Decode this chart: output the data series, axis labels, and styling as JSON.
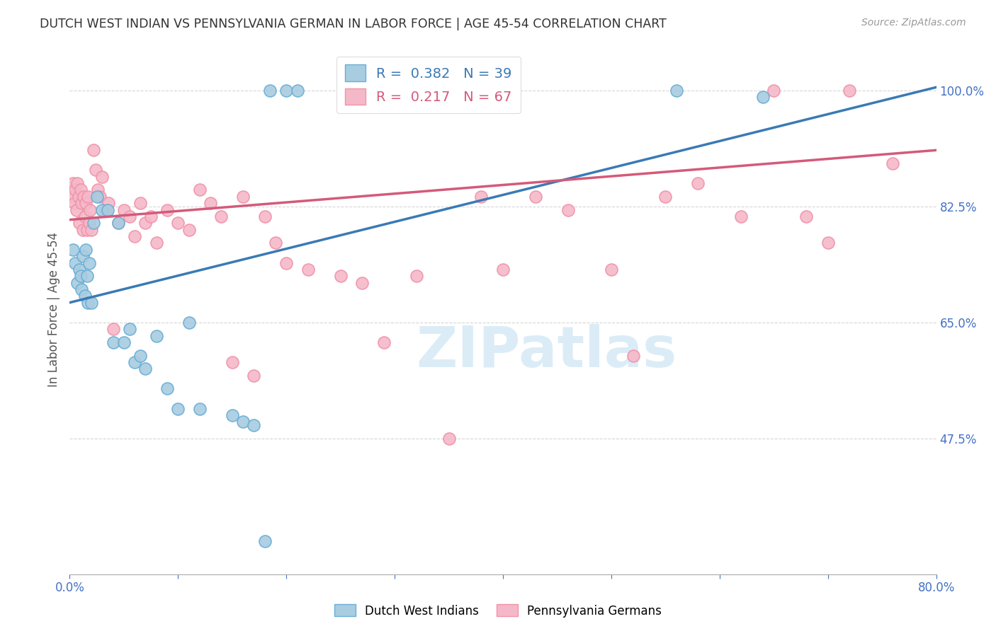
{
  "title": "DUTCH WEST INDIAN VS PENNSYLVANIA GERMAN IN LABOR FORCE | AGE 45-54 CORRELATION CHART",
  "source": "Source: ZipAtlas.com",
  "ylabel": "In Labor Force | Age 45-54",
  "xlim": [
    0.0,
    80.0
  ],
  "ylim": [
    27.0,
    107.0
  ],
  "yticks": [
    47.5,
    65.0,
    82.5,
    100.0
  ],
  "xticks": [
    0.0,
    10.0,
    20.0,
    30.0,
    40.0,
    50.0,
    60.0,
    70.0,
    80.0
  ],
  "xticklabels": [
    "0.0%",
    "",
    "",
    "",
    "",
    "",
    "",
    "",
    "80.0%"
  ],
  "blue_R": 0.382,
  "blue_N": 39,
  "pink_R": 0.217,
  "pink_N": 67,
  "blue_label": "Dutch West Indians",
  "pink_label": "Pennsylvania Germans",
  "blue_color": "#a8cce0",
  "pink_color": "#f5b8c8",
  "blue_edge_color": "#6aaed6",
  "pink_edge_color": "#f093aa",
  "blue_line_color": "#3a7ab5",
  "pink_line_color": "#d45a7a",
  "title_color": "#333333",
  "axis_label_color": "#555555",
  "tick_color": "#4472c4",
  "background_color": "#ffffff",
  "grid_color": "#cccccc",
  "blue_x": [
    0.3,
    0.5,
    0.7,
    0.9,
    1.0,
    1.1,
    1.2,
    1.4,
    1.5,
    1.6,
    1.7,
    1.8,
    2.0,
    2.2,
    2.5,
    3.0,
    3.5,
    4.0,
    4.5,
    5.0,
    5.5,
    6.0,
    6.5,
    7.0,
    8.0,
    9.0,
    10.0,
    11.0,
    12.0,
    15.0,
    16.0,
    17.0,
    18.0,
    20.0,
    21.0,
    30.0,
    56.0,
    64.0,
    18.5
  ],
  "blue_y": [
    76.0,
    74.0,
    71.0,
    73.0,
    72.0,
    70.0,
    75.0,
    69.0,
    76.0,
    72.0,
    68.0,
    74.0,
    68.0,
    80.0,
    84.0,
    82.0,
    82.0,
    62.0,
    80.0,
    62.0,
    64.0,
    59.0,
    60.0,
    58.0,
    63.0,
    55.0,
    52.0,
    65.0,
    52.0,
    51.0,
    50.0,
    49.5,
    32.0,
    100.0,
    100.0,
    100.0,
    100.0,
    99.0,
    100.0
  ],
  "pink_x": [
    0.2,
    0.3,
    0.4,
    0.5,
    0.6,
    0.7,
    0.8,
    0.9,
    1.0,
    1.1,
    1.2,
    1.3,
    1.4,
    1.5,
    1.6,
    1.7,
    1.8,
    1.9,
    2.0,
    2.2,
    2.4,
    2.6,
    2.8,
    3.0,
    3.3,
    3.6,
    4.0,
    4.5,
    5.0,
    5.5,
    6.0,
    6.5,
    7.0,
    7.5,
    8.0,
    9.0,
    10.0,
    11.0,
    12.0,
    13.0,
    14.0,
    15.0,
    16.0,
    17.0,
    18.0,
    19.0,
    20.0,
    22.0,
    25.0,
    27.0,
    29.0,
    32.0,
    35.0,
    38.0,
    40.0,
    43.0,
    46.0,
    50.0,
    52.0,
    55.0,
    58.0,
    62.0,
    65.0,
    68.0,
    70.0,
    72.0,
    76.0
  ],
  "pink_y": [
    84.0,
    86.0,
    83.0,
    85.0,
    82.0,
    86.0,
    84.0,
    80.0,
    85.0,
    83.0,
    79.0,
    84.0,
    81.0,
    83.0,
    79.0,
    84.0,
    80.0,
    82.0,
    79.0,
    91.0,
    88.0,
    85.0,
    84.0,
    87.0,
    82.0,
    83.0,
    64.0,
    80.0,
    82.0,
    81.0,
    78.0,
    83.0,
    80.0,
    81.0,
    77.0,
    82.0,
    80.0,
    79.0,
    85.0,
    83.0,
    81.0,
    59.0,
    84.0,
    57.0,
    81.0,
    77.0,
    74.0,
    73.0,
    72.0,
    71.0,
    62.0,
    72.0,
    47.5,
    84.0,
    73.0,
    84.0,
    82.0,
    73.0,
    60.0,
    84.0,
    86.0,
    81.0,
    100.0,
    81.0,
    77.0,
    100.0,
    89.0
  ],
  "blue_line_x0": 0.0,
  "blue_line_x1": 80.0,
  "blue_line_y0": 68.0,
  "blue_line_y1": 100.5,
  "pink_line_x0": 0.0,
  "pink_line_x1": 80.0,
  "pink_line_y0": 80.5,
  "pink_line_y1": 91.0,
  "watermark": "ZIPatlas",
  "watermark_color": "#cce5f5"
}
